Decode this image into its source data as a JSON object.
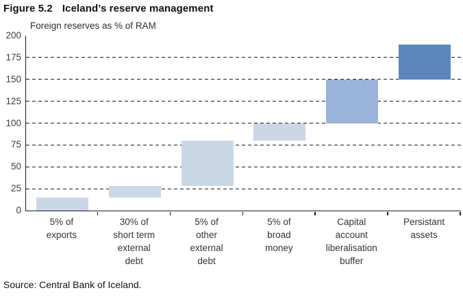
{
  "header": {
    "figure_label": "Figure 5.2",
    "title": "Iceland’s reserve management"
  },
  "source": "Source: Central Bank of Iceland.",
  "chart_data": {
    "type": "bar",
    "subtype": "waterfall",
    "title": "Foreign reserves as % of RAM",
    "xlabel": "",
    "ylabel": "Foreign reserves as % of RAM",
    "ylim": [
      0,
      200
    ],
    "yticks": [
      0,
      25,
      50,
      75,
      100,
      125,
      150,
      175,
      200
    ],
    "gridlines": [
      25,
      50,
      75,
      100,
      125,
      150,
      175
    ],
    "grid_style": "dashed",
    "legend_position": "none",
    "axis_color": "#1a1a1a",
    "categories": [
      "5% of\nexports",
      "30% of\nshort term\nexternal\ndebt",
      "5% of\nother\nexternal\ndebt",
      "5% of\nbroad\nmoney",
      "Capital\naccount\nliberalisation\nbuffer",
      "Persistant\nassets"
    ],
    "segments": [
      {
        "label": "5% of exports",
        "start": 0,
        "end": 15,
        "color": "#cbd7e6"
      },
      {
        "label": "30% of short term external debt",
        "start": 15,
        "end": 28,
        "color": "#cbd7e6"
      },
      {
        "label": "5% of other external debt",
        "start": 28,
        "end": 80,
        "color": "#cbd7e6"
      },
      {
        "label": "5% of broad money",
        "start": 80,
        "end": 100,
        "color": "#cbd7e6"
      },
      {
        "label": "Capital account liberalisation buffer",
        "start": 100,
        "end": 150,
        "color": "#9ab3d8"
      },
      {
        "label": "Persistant assets",
        "start": 150,
        "end": 190,
        "color": "#5c87ba"
      }
    ]
  }
}
